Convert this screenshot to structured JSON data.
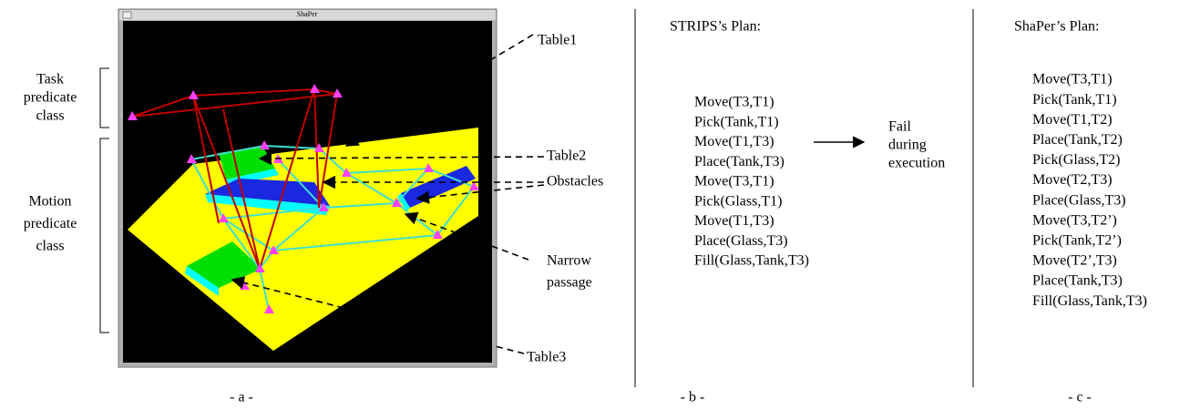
{
  "window": {
    "title": "ShaPer"
  },
  "panel_a": {
    "task_label": [
      "Task",
      "predicate",
      "class"
    ],
    "motion_label": [
      "Motion",
      "predicate",
      "class"
    ],
    "annotations": {
      "table1": "Table1",
      "table2": "Table2",
      "obstacles": "Obstacles",
      "narrow_passage": [
        "Narrow",
        "passage"
      ],
      "table3": "Table3"
    },
    "caption": "- a -"
  },
  "panel_b": {
    "title": "STRIPS’s Plan:",
    "steps": [
      "Move(T3,T1)",
      "Pick(Tank,T1)",
      "Move(T1,T3)",
      "Place(Tank,T3)",
      "Move(T3,T1)",
      "Pick(Glass,T1)",
      "Move(T1,T3)",
      "Place(Glass,T3)",
      "Fill(Glass,Tank,T3)"
    ],
    "note": [
      "Fail",
      "during",
      "execution"
    ],
    "caption": "- b -"
  },
  "panel_c": {
    "title": "ShaPer’s Plan:",
    "steps": [
      "Move(T3,T1)",
      "Pick(Tank,T1)",
      "Move(T1,T2)",
      "Place(Tank,T2)",
      "Pick(Glass,T2)",
      "Move(T2,T3)",
      "Place(Glass,T3)",
      "Move(T3,T2’)",
      "Pick(Tank,T2’)",
      "Move(T2’,T3)",
      "Place(Tank,T3)",
      "Fill(Glass,Tank,T3)"
    ],
    "caption": "- c -"
  }
}
